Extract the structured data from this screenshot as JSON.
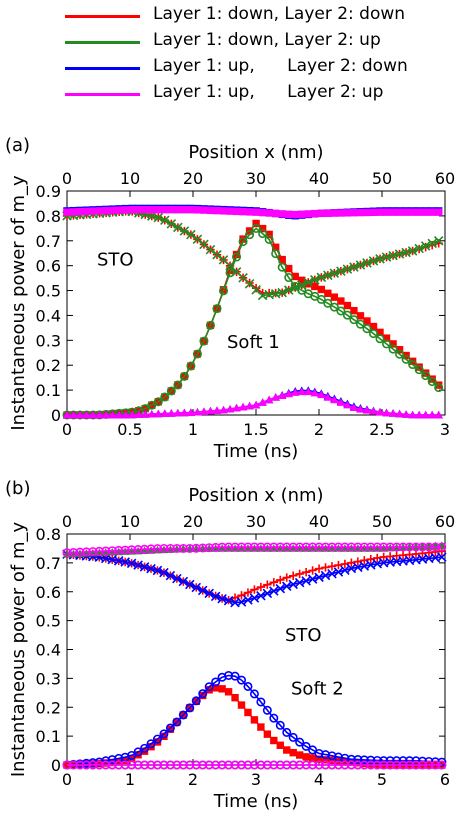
{
  "legend": [
    {
      "label": "Layer 1: down, Layer 2: down",
      "color": "#ff0000"
    },
    {
      "label": "Layer 1: down, Layer 2: up",
      "color": "#228b22"
    },
    {
      "label": "Layer 1: up,      Layer 2: down",
      "color": "#0000ff"
    },
    {
      "label": "Layer 1: up,      Layer 2: up",
      "color": "#ff00ff"
    }
  ],
  "chart_data": [
    {
      "type": "line",
      "panel_label": "(a)",
      "xlabel": "Time (ns)",
      "ylabel": "Instantaneous power of m_y",
      "x2label": "Position x (nm)",
      "xlim": [
        0,
        3
      ],
      "ylim": [
        0,
        0.9
      ],
      "x2lim": [
        0,
        60
      ],
      "xticks": [
        "0",
        "0.5",
        "1",
        "1.5",
        "2",
        "2.5",
        "3"
      ],
      "yticks": [
        "0",
        "0.1",
        "0.2",
        "0.3",
        "0.4",
        "0.5",
        "0.6",
        "0.7",
        "0.8",
        "0.9"
      ],
      "x2ticks": [
        "0",
        "10",
        "20",
        "30",
        "40",
        "50",
        "60"
      ],
      "annotations": [
        "STO",
        "Soft 1"
      ],
      "grid": false,
      "series": [
        {
          "name": "Layer 1: down, Layer 2: down",
          "curve": "STO",
          "marker": "plus",
          "color": "#ff0000",
          "x": [
            0,
            0.25,
            0.5,
            0.75,
            1.0,
            1.25,
            1.4,
            1.55,
            1.7,
            1.85,
            2.0,
            2.25,
            2.5,
            2.75,
            2.95
          ],
          "y": [
            0.8,
            0.81,
            0.82,
            0.79,
            0.72,
            0.62,
            0.55,
            0.49,
            0.49,
            0.52,
            0.55,
            0.59,
            0.63,
            0.66,
            0.69
          ]
        },
        {
          "name": "Layer 1: down, Layer 2: down",
          "curve": "Soft 1",
          "marker": "square",
          "color": "#ff0000",
          "x": [
            0,
            0.25,
            0.5,
            0.6,
            0.75,
            0.9,
            1.0,
            1.1,
            1.2,
            1.3,
            1.4,
            1.5,
            1.6,
            1.7,
            1.8,
            1.9,
            2.0,
            2.2,
            2.4,
            2.6,
            2.8,
            2.95
          ],
          "y": [
            0.0,
            0.0,
            0.01,
            0.02,
            0.06,
            0.13,
            0.21,
            0.31,
            0.44,
            0.59,
            0.71,
            0.77,
            0.73,
            0.63,
            0.56,
            0.53,
            0.51,
            0.45,
            0.37,
            0.28,
            0.19,
            0.12
          ]
        },
        {
          "name": "Layer 1: down, Layer 2: up",
          "curve": "STO",
          "marker": "cross",
          "color": "#228b22",
          "x": [
            0,
            0.25,
            0.5,
            0.75,
            1.0,
            1.25,
            1.4,
            1.55,
            1.7,
            1.85,
            2.0,
            2.25,
            2.5,
            2.75,
            2.95
          ],
          "y": [
            0.8,
            0.81,
            0.82,
            0.79,
            0.72,
            0.62,
            0.55,
            0.48,
            0.49,
            0.52,
            0.55,
            0.59,
            0.63,
            0.66,
            0.7
          ]
        },
        {
          "name": "Layer 1: down, Layer 2: up",
          "curve": "Soft 1",
          "marker": "circle",
          "color": "#228b22",
          "x": [
            0,
            0.25,
            0.5,
            0.6,
            0.75,
            0.9,
            1.0,
            1.1,
            1.2,
            1.3,
            1.4,
            1.5,
            1.6,
            1.7,
            1.8,
            1.9,
            2.0,
            2.2,
            2.4,
            2.6,
            2.8,
            2.95
          ],
          "y": [
            0.0,
            0.0,
            0.01,
            0.02,
            0.06,
            0.13,
            0.21,
            0.31,
            0.44,
            0.58,
            0.7,
            0.75,
            0.71,
            0.6,
            0.52,
            0.49,
            0.47,
            0.41,
            0.34,
            0.26,
            0.18,
            0.11
          ]
        },
        {
          "name": "Layer 1: up,      Layer 2: down",
          "curve": "STO",
          "marker": "square",
          "color": "#0000ff",
          "x": [
            0,
            0.5,
            1.0,
            1.5,
            1.8,
            2.0,
            2.5,
            2.95
          ],
          "y": [
            0.82,
            0.83,
            0.83,
            0.82,
            0.8,
            0.81,
            0.82,
            0.82
          ]
        },
        {
          "name": "Layer 1: up,      Layer 2: down",
          "curve": "Soft 1",
          "marker": "triangle",
          "color": "#0000ff",
          "x": [
            0,
            0.5,
            1.0,
            1.25,
            1.5,
            1.65,
            1.8,
            1.9,
            2.0,
            2.15,
            2.3,
            2.5,
            2.75,
            2.95
          ],
          "y": [
            0.0,
            0.0,
            0.01,
            0.02,
            0.04,
            0.07,
            0.095,
            0.1,
            0.09,
            0.06,
            0.03,
            0.01,
            0.0,
            0.0
          ]
        },
        {
          "name": "Layer 1: up,      Layer 2: up",
          "curve": "STO",
          "marker": "square",
          "color": "#ff00ff",
          "x": [
            0,
            0.5,
            1.0,
            1.5,
            1.8,
            2.0,
            2.5,
            2.95
          ],
          "y": [
            0.815,
            0.825,
            0.825,
            0.815,
            0.805,
            0.81,
            0.815,
            0.815
          ]
        },
        {
          "name": "Layer 1: up,      Layer 2: up",
          "curve": "Soft 1",
          "marker": "triangle",
          "color": "#ff00ff",
          "x": [
            0,
            0.5,
            1.0,
            1.25,
            1.5,
            1.65,
            1.8,
            1.9,
            2.0,
            2.15,
            2.3,
            2.5,
            2.75,
            2.95
          ],
          "y": [
            0.0,
            0.0,
            0.01,
            0.02,
            0.04,
            0.07,
            0.09,
            0.095,
            0.085,
            0.055,
            0.025,
            0.01,
            0.0,
            0.0
          ]
        }
      ]
    },
    {
      "type": "line",
      "panel_label": "(b)",
      "xlabel": "Time (ns)",
      "ylabel": "Instantaneous power of m_y",
      "x2label": "Position x (nm)",
      "xlim": [
        0,
        6
      ],
      "ylim": [
        0,
        0.8
      ],
      "x2lim": [
        0,
        60
      ],
      "xticks": [
        "0",
        "1",
        "2",
        "3",
        "4",
        "5",
        "6"
      ],
      "yticks": [
        "0",
        "0.1",
        "0.2",
        "0.3",
        "0.4",
        "0.5",
        "0.6",
        "0.7",
        "0.8"
      ],
      "x2ticks": [
        "0",
        "10",
        "20",
        "30",
        "40",
        "50",
        "60"
      ],
      "annotations": [
        "STO",
        "Soft 2"
      ],
      "grid": false,
      "series": [
        {
          "name": "Layer 1: down, Layer 2: down",
          "curve": "STO",
          "marker": "plus",
          "color": "#ff0000",
          "x": [
            0,
            0.5,
            1.0,
            1.5,
            2.0,
            2.3,
            2.55,
            2.8,
            3.0,
            3.5,
            4.0,
            4.5,
            5.0,
            5.5,
            5.95
          ],
          "y": [
            0.73,
            0.72,
            0.7,
            0.67,
            0.62,
            0.59,
            0.57,
            0.59,
            0.61,
            0.65,
            0.68,
            0.7,
            0.72,
            0.73,
            0.74
          ]
        },
        {
          "name": "Layer 1: down, Layer 2: down",
          "curve": "Soft 2",
          "marker": "square",
          "color": "#ff0000",
          "x": [
            0,
            0.5,
            0.8,
            1.0,
            1.25,
            1.5,
            1.75,
            2.0,
            2.25,
            2.4,
            2.6,
            2.8,
            3.0,
            3.25,
            3.5,
            3.75,
            4.0,
            4.5,
            5.0,
            5.5,
            5.95
          ],
          "y": [
            0.0,
            0.005,
            0.01,
            0.02,
            0.05,
            0.09,
            0.15,
            0.21,
            0.26,
            0.27,
            0.25,
            0.2,
            0.15,
            0.09,
            0.05,
            0.03,
            0.02,
            0.01,
            0.0,
            0.0,
            0.0
          ]
        },
        {
          "name": "Layer 1: up,      Layer 2: down",
          "curve": "STO",
          "marker": "cross",
          "color": "#0000ff",
          "x": [
            0,
            0.5,
            1.0,
            1.5,
            2.0,
            2.4,
            2.7,
            3.0,
            3.5,
            4.0,
            4.5,
            5.0,
            5.5,
            5.95
          ],
          "y": [
            0.73,
            0.72,
            0.7,
            0.67,
            0.62,
            0.58,
            0.56,
            0.58,
            0.62,
            0.65,
            0.68,
            0.7,
            0.71,
            0.72
          ]
        },
        {
          "name": "Layer 1: up,      Layer 2: down",
          "curve": "Soft 2",
          "marker": "circle",
          "color": "#0000ff",
          "x": [
            0,
            0.5,
            1.0,
            1.25,
            1.5,
            1.75,
            2.0,
            2.25,
            2.5,
            2.65,
            2.8,
            3.0,
            3.25,
            3.5,
            3.75,
            4.0,
            4.25,
            4.5,
            5.0,
            5.5,
            5.95
          ],
          "y": [
            0.0,
            0.01,
            0.03,
            0.06,
            0.1,
            0.15,
            0.21,
            0.27,
            0.31,
            0.31,
            0.29,
            0.24,
            0.17,
            0.11,
            0.07,
            0.04,
            0.03,
            0.02,
            0.015,
            0.015,
            0.01
          ]
        },
        {
          "name": "Layer 1: down, Layer 2: up",
          "curve": "STO",
          "marker": "triangle",
          "color": "#228b22",
          "x": [
            0,
            1.0,
            2.0,
            3.0,
            4.0,
            5.0,
            5.95
          ],
          "y": [
            0.73,
            0.74,
            0.75,
            0.75,
            0.75,
            0.75,
            0.76
          ]
        },
        {
          "name": "Layer 1: up,      Layer 2: up",
          "curve": "STO",
          "marker": "circle",
          "color": "#ff00ff",
          "x": [
            0,
            0.5,
            1.0,
            1.5,
            2.0,
            2.5,
            3.0,
            3.5,
            4.0,
            4.5,
            5.0,
            5.5,
            5.95
          ],
          "y": [
            0.735,
            0.74,
            0.745,
            0.75,
            0.75,
            0.755,
            0.755,
            0.755,
            0.755,
            0.755,
            0.755,
            0.755,
            0.755
          ]
        },
        {
          "name": "Layer 1: down, Layer 2: up",
          "curve": "Soft 2",
          "marker": "circle",
          "color": "#228b22",
          "x": [
            0,
            1.0,
            2.0,
            3.0,
            4.0,
            5.0,
            5.95
          ],
          "y": [
            0.0,
            0.0,
            0.0,
            0.0,
            0.0,
            0.0,
            0.0
          ]
        },
        {
          "name": "Layer 1: up,      Layer 2: up",
          "curve": "Soft 2",
          "marker": "circle",
          "color": "#ff00ff",
          "x": [
            0,
            1.0,
            2.0,
            3.0,
            4.0,
            5.0,
            5.95
          ],
          "y": [
            0.0,
            0.0,
            0.0,
            0.0,
            0.0,
            0.0,
            0.0
          ]
        }
      ]
    }
  ]
}
